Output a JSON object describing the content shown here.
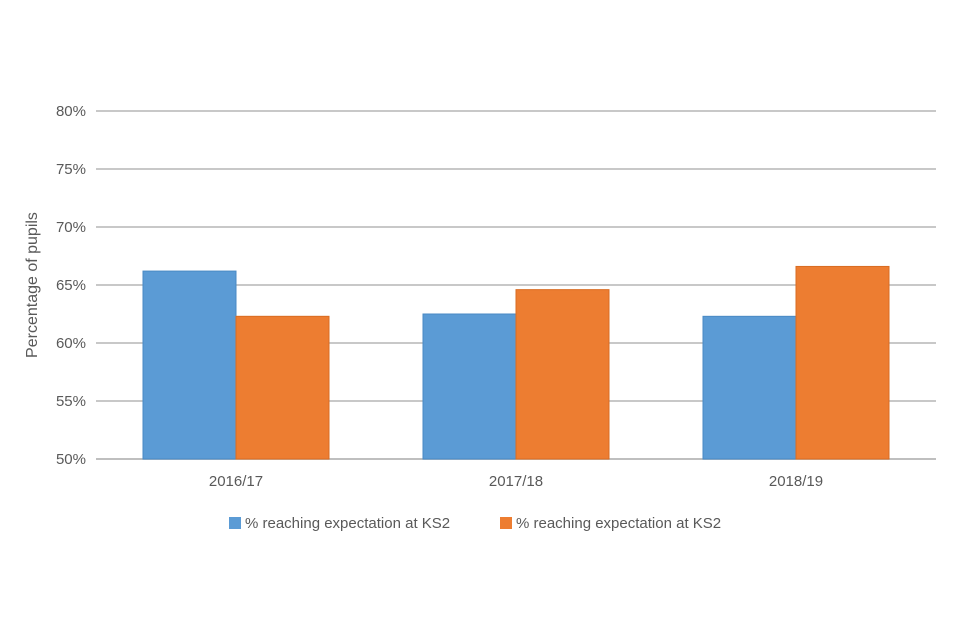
{
  "chart_data": {
    "type": "bar",
    "title": "",
    "xlabel": "",
    "ylabel": "Percentage of pupils",
    "ylim": [
      50,
      80
    ],
    "yticks": [
      50,
      55,
      60,
      65,
      70,
      75,
      80
    ],
    "ytick_suffix": "%",
    "grid": true,
    "legend_position": "bottom",
    "categories": [
      "2016/17",
      "2017/18",
      "2018/19"
    ],
    "series": [
      {
        "name": "% reaching expectation at KS2",
        "color": "#5b9bd5",
        "values": [
          66.2,
          62.5,
          62.3
        ]
      },
      {
        "name": "% reaching expectation at KS2",
        "color": "#ed7d31",
        "values": [
          62.3,
          64.6,
          66.6
        ]
      }
    ]
  }
}
